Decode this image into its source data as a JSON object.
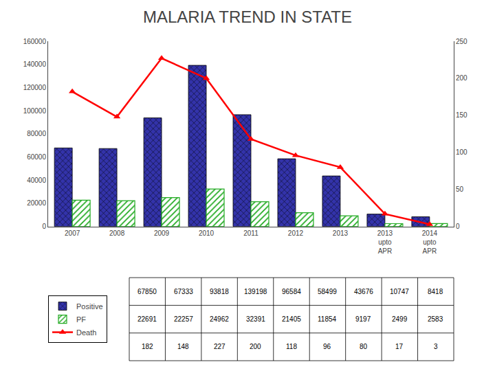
{
  "chart_data": {
    "type": "bar",
    "title": "MALARIA TREND IN STATE",
    "categories": [
      "2007",
      "2008",
      "2009",
      "2010",
      "2011",
      "2012",
      "2013",
      "2013\nupto\nAPR",
      "2014\nupto\nAPR"
    ],
    "series": [
      {
        "name": "Positive",
        "color": "#3333AA",
        "values": [
          67850,
          67333,
          93818,
          139198,
          96584,
          58499,
          43676,
          10747,
          8418
        ]
      },
      {
        "name": "PF",
        "color": "#22AA22",
        "values": [
          22691,
          22257,
          24962,
          32391,
          21405,
          11854,
          9197,
          2499,
          2583
        ]
      },
      {
        "name": "Death",
        "type": "line",
        "color": "#FF0000",
        "marker": "triangle",
        "axis": "y2",
        "values": [
          182,
          148,
          227,
          200,
          118,
          96,
          80,
          17,
          3
        ]
      }
    ],
    "ylim": [
      0,
      160000
    ],
    "yticks": [
      0,
      20000,
      40000,
      60000,
      80000,
      100000,
      120000,
      140000,
      160000
    ],
    "y2lim": [
      0,
      250
    ],
    "y2ticks": [
      0,
      50,
      100,
      150,
      200,
      250
    ],
    "grid": false,
    "legend": "lower left"
  }
}
